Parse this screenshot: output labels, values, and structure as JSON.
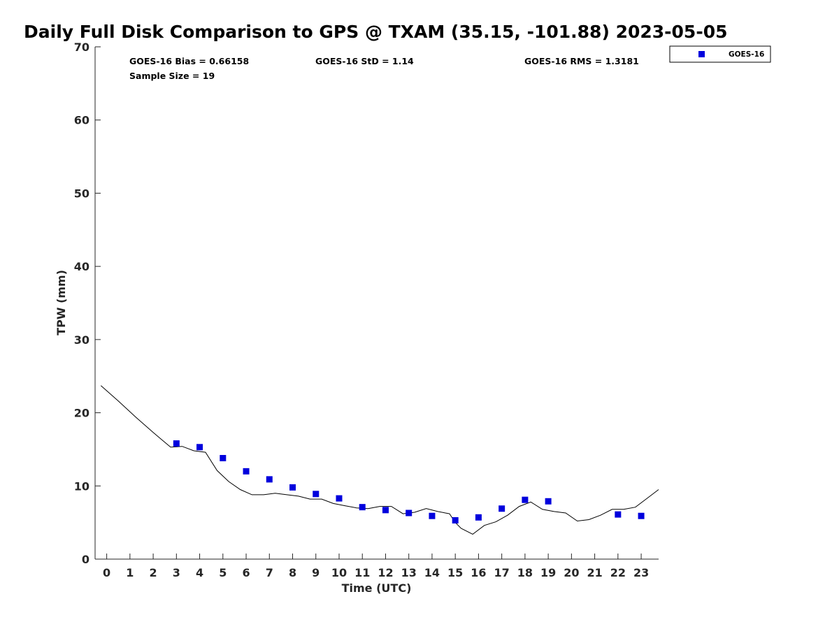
{
  "chart_data": {
    "type": "scatter",
    "title": "Daily Full Disk Comparison to GPS @ TXAM (35.15, -101.88) 2023-05-05",
    "xlabel": "Time (UTC)",
    "ylabel": "TPW (mm)",
    "xlim": [
      -0.5,
      23.75
    ],
    "ylim": [
      0,
      70
    ],
    "xticks": [
      0,
      1,
      2,
      3,
      4,
      5,
      6,
      7,
      8,
      9,
      10,
      11,
      12,
      13,
      14,
      15,
      16,
      17,
      18,
      19,
      20,
      21,
      22,
      23
    ],
    "yticks": [
      0,
      10,
      20,
      30,
      40,
      50,
      60,
      70
    ],
    "grid": false,
    "legend": {
      "placement": "top-right (outside axes)",
      "entries": [
        "GOES-16"
      ]
    },
    "stats": {
      "bias": "GOES-16 Bias = 0.66158",
      "std": "GOES-16 StD = 1.14",
      "rms": "GOES-16 RMS = 1.3181",
      "sample": "Sample Size = 19"
    },
    "series": [
      {
        "name": "GOES-16",
        "kind": "scatter",
        "color": "#0000dd",
        "x": [
          3,
          4,
          5,
          6,
          7,
          8,
          9,
          10,
          11,
          12,
          13,
          14,
          15,
          16,
          17,
          18,
          19,
          22,
          23
        ],
        "y": [
          15.8,
          15.3,
          13.8,
          12.0,
          10.9,
          9.8,
          8.9,
          8.3,
          7.1,
          6.7,
          6.3,
          5.9,
          5.3,
          5.7,
          6.9,
          8.1,
          7.9,
          6.1,
          5.9
        ]
      },
      {
        "name": "GPS",
        "kind": "line",
        "color": "#000000",
        "x": [
          -0.25,
          0.5,
          1.25,
          2.0,
          2.3,
          2.75,
          3.25,
          3.75,
          4.25,
          4.75,
          5.25,
          5.75,
          6.25,
          6.75,
          7.25,
          7.75,
          8.25,
          8.75,
          9.25,
          9.75,
          10.25,
          10.75,
          11.25,
          11.75,
          12.25,
          12.75,
          13.25,
          13.75,
          14.25,
          14.75,
          15.0,
          15.25,
          15.75,
          16.25,
          16.75,
          17.25,
          17.75,
          18.25,
          18.75,
          19.25,
          19.75,
          20.25,
          20.75,
          21.25,
          21.75,
          22.25,
          22.75,
          23.25,
          23.75
        ],
        "y": [
          23.7,
          21.6,
          19.4,
          17.3,
          16.5,
          15.3,
          15.4,
          14.8,
          14.6,
          12.1,
          10.6,
          9.5,
          8.8,
          8.8,
          9.0,
          8.8,
          8.6,
          8.2,
          8.2,
          7.6,
          7.3,
          7.0,
          6.9,
          7.2,
          7.2,
          6.2,
          6.4,
          6.9,
          6.5,
          6.2,
          5.0,
          4.2,
          3.4,
          4.6,
          5.1,
          6.0,
          7.2,
          7.8,
          6.8,
          6.5,
          6.3,
          5.2,
          5.4,
          6.0,
          6.8,
          6.8,
          7.1,
          8.3,
          9.5
        ]
      }
    ]
  }
}
